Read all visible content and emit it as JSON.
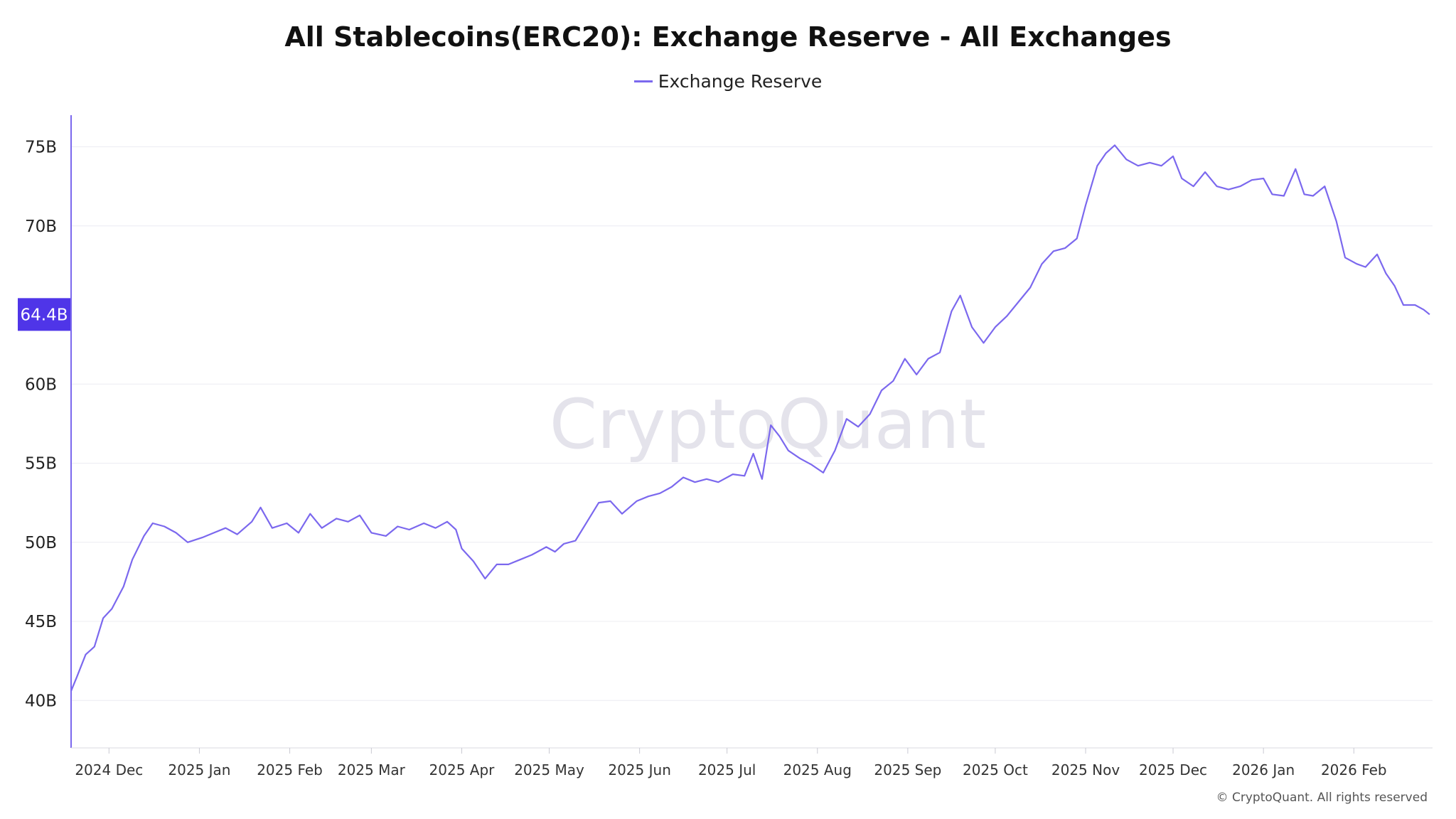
{
  "title": "All Stablecoins(ERC20): Exchange Reserve - All Exchanges",
  "watermark": "CryptoQuant",
  "copyright": "© CryptoQuant. All rights reserved",
  "colors": {
    "line": "#7b68ee",
    "badge": "#4f35e8",
    "grid": "#ececf2",
    "axis": "#7b68ee"
  },
  "chart_data": {
    "type": "line",
    "title": "All Stablecoins(ERC20): Exchange Reserve - All Exchanges",
    "xlabel": "",
    "ylabel": "",
    "ylim": [
      37,
      77
    ],
    "grid": true,
    "legend": "top-center",
    "y_ticks": [
      {
        "value": 40,
        "label": "40B"
      },
      {
        "value": 45,
        "label": "45B"
      },
      {
        "value": 50,
        "label": "50B"
      },
      {
        "value": 55,
        "label": "55B"
      },
      {
        "value": 60,
        "label": "60B"
      },
      {
        "value": 70,
        "label": "70B"
      },
      {
        "value": 75,
        "label": "75B"
      }
    ],
    "x_ticks": [
      "2024 Dec",
      "2025 Jan",
      "2025 Feb",
      "2025 Mar",
      "2025 Apr",
      "2025 May",
      "2025 Jun",
      "2025 Jul",
      "2025 Aug",
      "2025 Sep",
      "2025 Oct",
      "2025 Nov",
      "2025 Dec",
      "2026 Jan",
      "2026 Feb"
    ],
    "x_range": [
      "2024-11-18",
      "2026-02-28"
    ],
    "current_value": {
      "value": 64.4,
      "label": "64.4B"
    },
    "series": [
      {
        "name": "Exchange Reserve",
        "points": [
          [
            "2024-11-18",
            40.6
          ],
          [
            "2024-11-20",
            41.5
          ],
          [
            "2024-11-23",
            42.9
          ],
          [
            "2024-11-26",
            43.4
          ],
          [
            "2024-11-29",
            45.2
          ],
          [
            "2024-12-02",
            45.8
          ],
          [
            "2024-12-06",
            47.2
          ],
          [
            "2024-12-09",
            48.9
          ],
          [
            "2024-12-13",
            50.4
          ],
          [
            "2024-12-16",
            51.2
          ],
          [
            "2024-12-20",
            51.0
          ],
          [
            "2024-12-24",
            50.6
          ],
          [
            "2024-12-28",
            50.0
          ],
          [
            "2025-01-02",
            50.3
          ],
          [
            "2025-01-06",
            50.6
          ],
          [
            "2025-01-10",
            50.9
          ],
          [
            "2025-01-14",
            50.5
          ],
          [
            "2025-01-19",
            51.3
          ],
          [
            "2025-01-22",
            52.2
          ],
          [
            "2025-01-26",
            50.9
          ],
          [
            "2025-01-31",
            51.2
          ],
          [
            "2025-02-04",
            50.6
          ],
          [
            "2025-02-08",
            51.8
          ],
          [
            "2025-02-12",
            50.9
          ],
          [
            "2025-02-17",
            51.5
          ],
          [
            "2025-02-21",
            51.3
          ],
          [
            "2025-02-25",
            51.7
          ],
          [
            "2025-03-01",
            50.6
          ],
          [
            "2025-03-06",
            50.4
          ],
          [
            "2025-03-10",
            51.0
          ],
          [
            "2025-03-14",
            50.8
          ],
          [
            "2025-03-19",
            51.2
          ],
          [
            "2025-03-23",
            50.9
          ],
          [
            "2025-03-27",
            51.3
          ],
          [
            "2025-03-30",
            50.8
          ],
          [
            "2025-04-01",
            49.6
          ],
          [
            "2025-04-05",
            48.8
          ],
          [
            "2025-04-09",
            47.7
          ],
          [
            "2025-04-13",
            48.6
          ],
          [
            "2025-04-17",
            48.6
          ],
          [
            "2025-04-21",
            48.9
          ],
          [
            "2025-04-25",
            49.2
          ],
          [
            "2025-04-30",
            49.7
          ],
          [
            "2025-05-03",
            49.4
          ],
          [
            "2025-05-06",
            49.9
          ],
          [
            "2025-05-10",
            50.1
          ],
          [
            "2025-05-14",
            51.3
          ],
          [
            "2025-05-18",
            52.5
          ],
          [
            "2025-05-22",
            52.6
          ],
          [
            "2025-05-26",
            51.8
          ],
          [
            "2025-05-31",
            52.6
          ],
          [
            "2025-06-04",
            52.9
          ],
          [
            "2025-06-08",
            53.1
          ],
          [
            "2025-06-12",
            53.5
          ],
          [
            "2025-06-16",
            54.1
          ],
          [
            "2025-06-20",
            53.8
          ],
          [
            "2025-06-24",
            54.0
          ],
          [
            "2025-06-28",
            53.8
          ],
          [
            "2025-07-03",
            54.3
          ],
          [
            "2025-07-07",
            54.2
          ],
          [
            "2025-07-10",
            55.6
          ],
          [
            "2025-07-13",
            54.0
          ],
          [
            "2025-07-16",
            57.4
          ],
          [
            "2025-07-19",
            56.7
          ],
          [
            "2025-07-22",
            55.8
          ],
          [
            "2025-07-26",
            55.3
          ],
          [
            "2025-07-30",
            54.9
          ],
          [
            "2025-08-03",
            54.4
          ],
          [
            "2025-08-07",
            55.8
          ],
          [
            "2025-08-11",
            57.8
          ],
          [
            "2025-08-15",
            57.3
          ],
          [
            "2025-08-19",
            58.1
          ],
          [
            "2025-08-23",
            59.6
          ],
          [
            "2025-08-27",
            60.2
          ],
          [
            "2025-08-31",
            61.6
          ],
          [
            "2025-09-04",
            60.6
          ],
          [
            "2025-09-08",
            61.6
          ],
          [
            "2025-09-12",
            62.0
          ],
          [
            "2025-09-16",
            64.6
          ],
          [
            "2025-09-19",
            65.6
          ],
          [
            "2025-09-23",
            63.6
          ],
          [
            "2025-09-27",
            62.6
          ],
          [
            "2025-10-01",
            63.6
          ],
          [
            "2025-10-05",
            64.3
          ],
          [
            "2025-10-09",
            65.2
          ],
          [
            "2025-10-13",
            66.1
          ],
          [
            "2025-10-17",
            67.6
          ],
          [
            "2025-10-21",
            68.4
          ],
          [
            "2025-10-25",
            68.6
          ],
          [
            "2025-10-29",
            69.2
          ],
          [
            "2025-11-01",
            71.3
          ],
          [
            "2025-11-05",
            73.8
          ],
          [
            "2025-11-08",
            74.6
          ],
          [
            "2025-11-11",
            75.1
          ],
          [
            "2025-11-15",
            74.2
          ],
          [
            "2025-11-19",
            73.8
          ],
          [
            "2025-11-23",
            74.0
          ],
          [
            "2025-11-27",
            73.8
          ],
          [
            "2025-12-01",
            74.4
          ],
          [
            "2025-12-04",
            73.0
          ],
          [
            "2025-12-08",
            72.5
          ],
          [
            "2025-12-12",
            73.4
          ],
          [
            "2025-12-16",
            72.5
          ],
          [
            "2025-12-20",
            72.3
          ],
          [
            "2025-12-24",
            72.5
          ],
          [
            "2025-12-28",
            72.9
          ],
          [
            "2026-01-01",
            73.0
          ],
          [
            "2026-01-04",
            72.0
          ],
          [
            "2026-01-08",
            71.9
          ],
          [
            "2026-01-12",
            73.6
          ],
          [
            "2026-01-15",
            72.0
          ],
          [
            "2026-01-18",
            71.9
          ],
          [
            "2026-01-22",
            72.5
          ],
          [
            "2026-01-26",
            70.3
          ],
          [
            "2026-01-29",
            68.0
          ],
          [
            "2026-02-02",
            67.6
          ],
          [
            "2026-02-05",
            67.4
          ],
          [
            "2026-02-09",
            68.2
          ],
          [
            "2026-02-12",
            67.0
          ],
          [
            "2026-02-15",
            66.2
          ],
          [
            "2026-02-18",
            65.0
          ],
          [
            "2026-02-22",
            65.0
          ],
          [
            "2026-02-25",
            64.7
          ],
          [
            "2026-02-27",
            64.4
          ]
        ]
      }
    ]
  }
}
